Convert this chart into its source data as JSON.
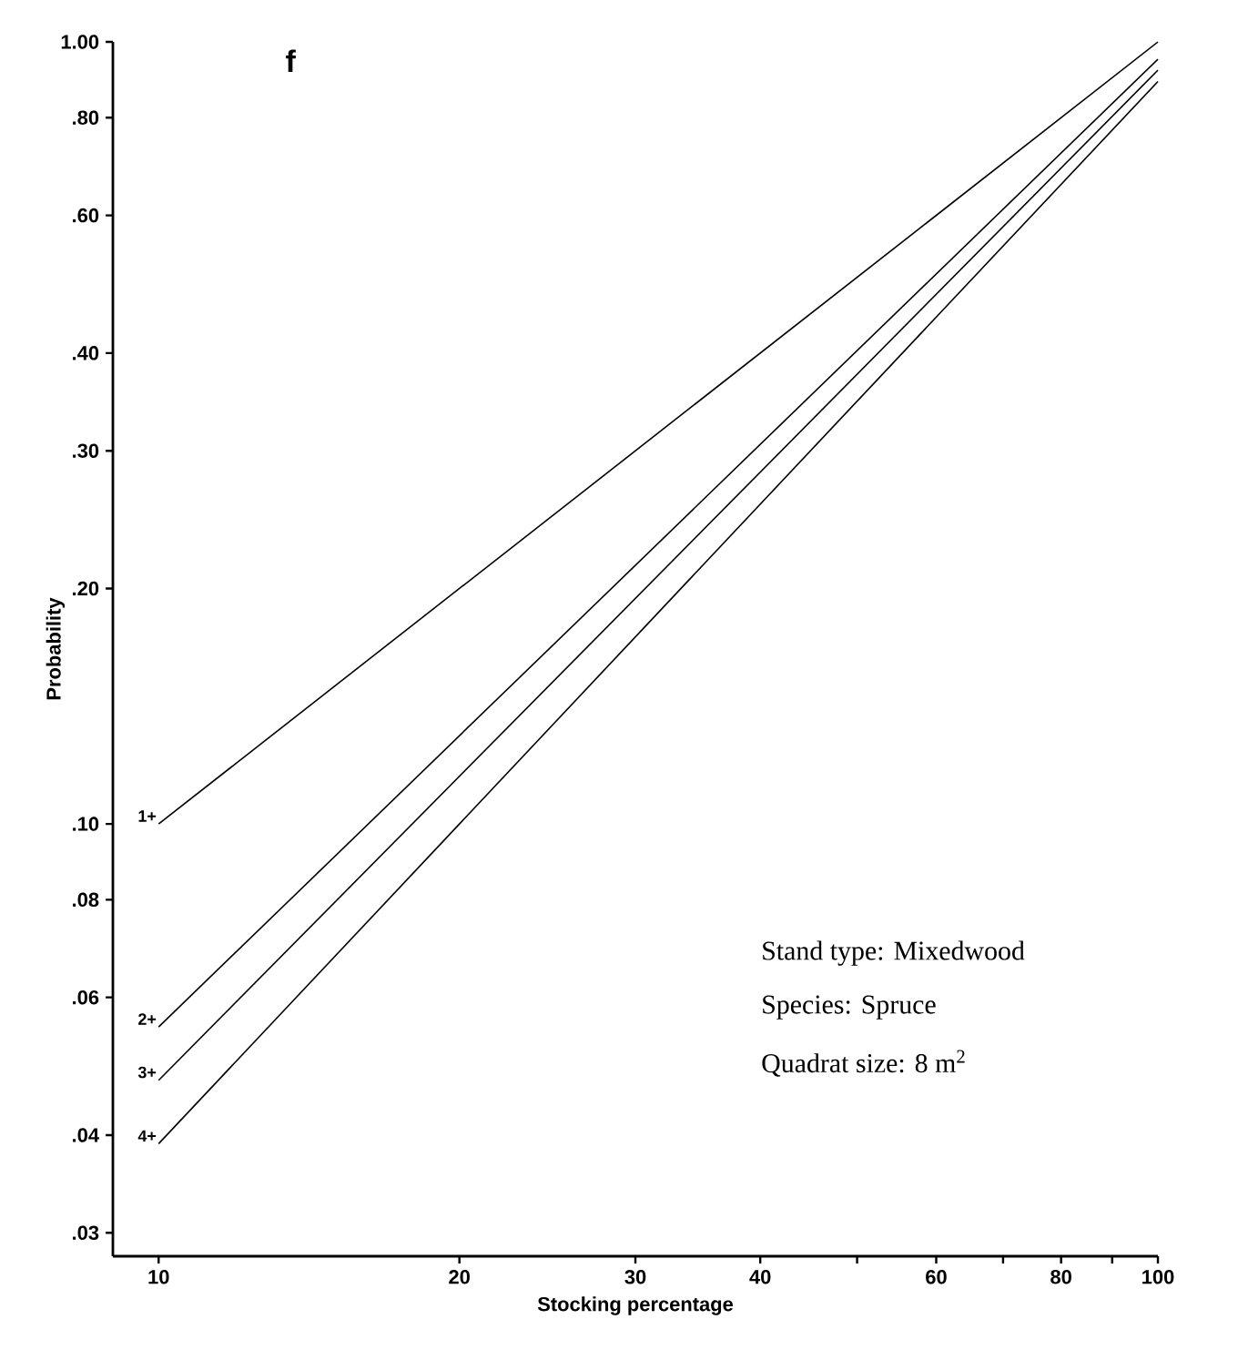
{
  "chart_data": {
    "type": "line",
    "title": "f",
    "xlabel": "Stocking percentage",
    "ylabel": "Probability",
    "log": "xy",
    "line_style": "solid",
    "xlim": [
      9,
      100
    ],
    "ylim": [
      0.028,
      1.0
    ],
    "xticks": [
      10,
      20,
      30,
      40,
      {
        "value": 50,
        "label": null
      },
      60,
      {
        "value": 70,
        "label": null
      },
      80,
      {
        "value": 90,
        "label": null
      },
      100
    ],
    "yticks": [
      {
        "value": 0.03,
        "label": ".03"
      },
      {
        "value": 0.04,
        "label": ".04"
      },
      {
        "value": 0.06,
        "label": ".06"
      },
      {
        "value": 0.08,
        "label": ".08"
      },
      {
        "value": 0.1,
        "label": ".10"
      },
      {
        "value": 0.2,
        "label": ".20"
      },
      {
        "value": 0.3,
        "label": ".30"
      },
      {
        "value": 0.4,
        "label": ".40"
      },
      {
        "value": 0.6,
        "label": ".60"
      },
      {
        "value": 0.8,
        "label": ".80"
      },
      {
        "value": 1.0,
        "label": "1.00"
      }
    ],
    "x": [
      10,
      100
    ],
    "series": [
      {
        "name": "1+",
        "color": "#000000",
        "values": [
          0.1,
          1.0
        ]
      },
      {
        "name": "2+",
        "color": "#000000",
        "values": [
          0.055,
          0.95
        ]
      },
      {
        "name": "3+",
        "color": "#000000",
        "values": [
          0.047,
          0.92
        ]
      },
      {
        "name": "4+",
        "color": "#000000",
        "values": [
          0.039,
          0.89
        ]
      }
    ],
    "annotations": [
      "Stand type:   Mixedwood",
      "Species:   Spruce",
      "Quadrat size:   8 m$^{2}$"
    ]
  }
}
